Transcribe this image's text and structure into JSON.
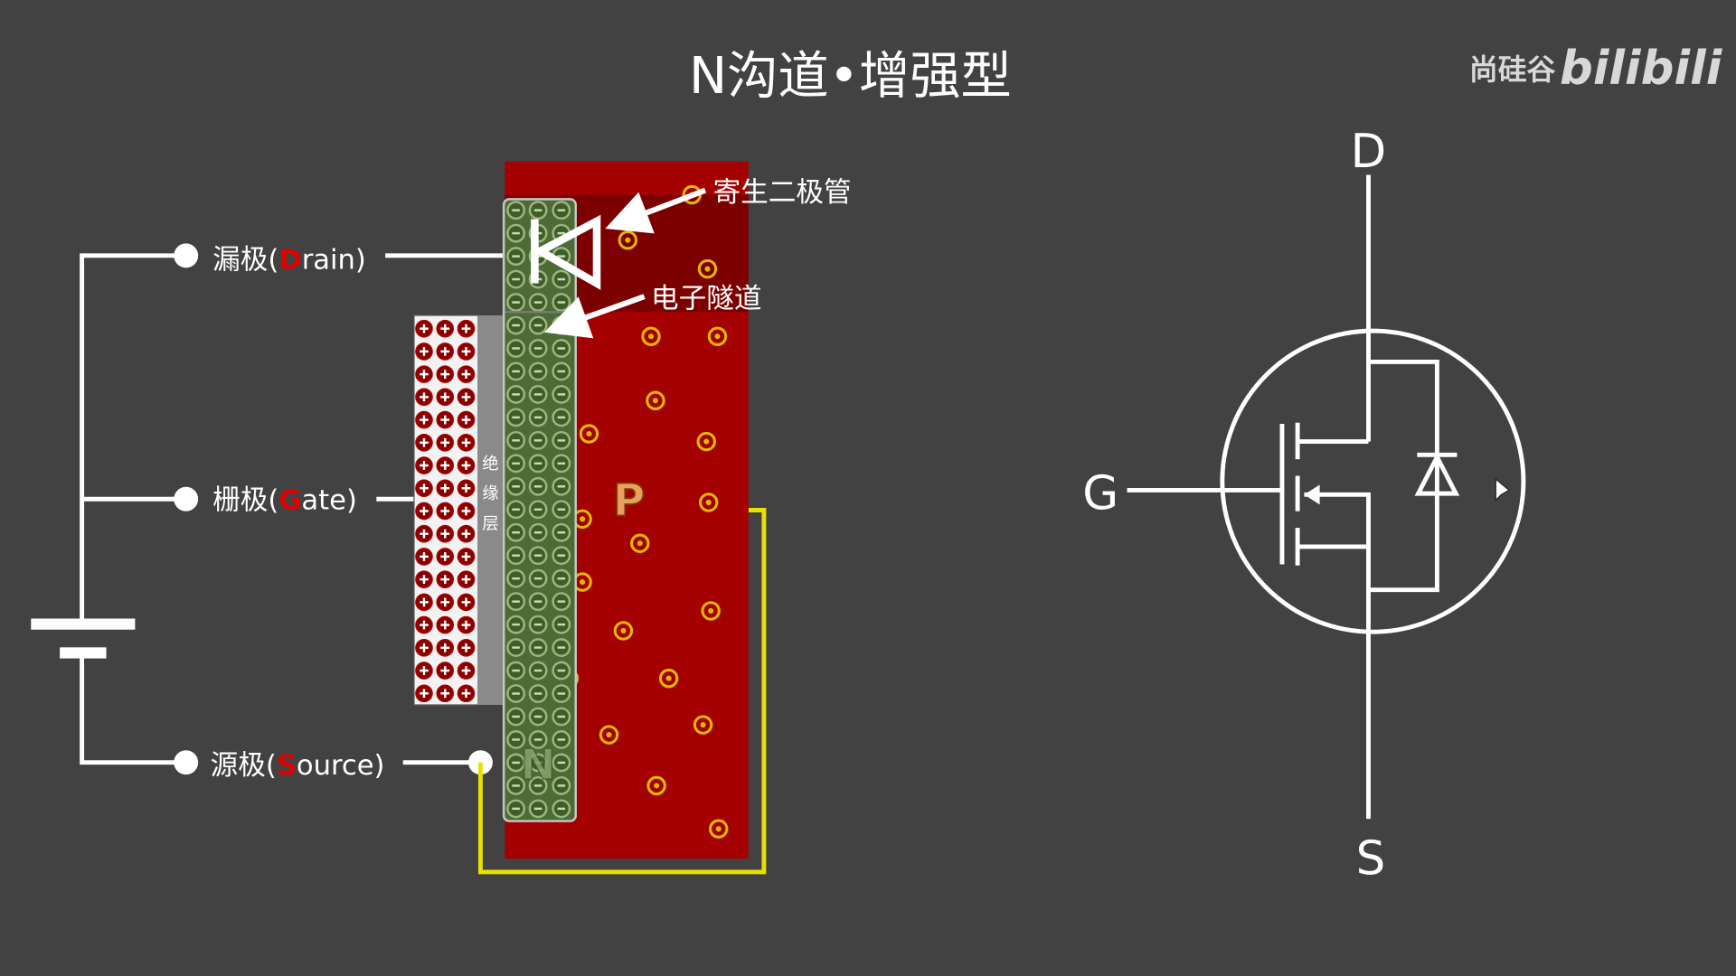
{
  "title": "N沟道•增强型",
  "watermark": {
    "brand": "尚硅谷",
    "logo": "bilibili"
  },
  "labels": {
    "drain_prefix": "漏极(",
    "drain_letter": "D",
    "drain_suffix": "rain)",
    "gate_prefix": "栅极(",
    "gate_letter": "G",
    "gate_suffix": "ate)",
    "source_prefix": "源极(",
    "source_letter": "S",
    "source_suffix": "ource)",
    "parasitic_diode": "寄生二极管",
    "electron_tunnel": "电子隧道",
    "insulation_layer": [
      "绝",
      "缘",
      "层"
    ],
    "p_region": "P",
    "n_region": "N"
  },
  "symbol": {
    "drain": "D",
    "gate": "G",
    "source": "S"
  },
  "colors": {
    "background": "#424242",
    "substrate": "#a50000",
    "substrate_dark": "#5c0000",
    "n_channel": "#4d6b36",
    "gate_plate": "#f2f2f2",
    "wire": "#ffffff",
    "bulk_wire": "#e8e000",
    "highlight_letter": "#e00000",
    "hole_ring": "#e0b800"
  }
}
